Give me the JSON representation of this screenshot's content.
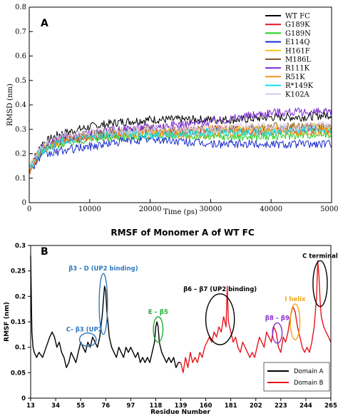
{
  "chart_data": [
    {
      "type": "line",
      "panel_label": "A",
      "title": "",
      "xlabel": "Time (ps)",
      "ylabel": "RMSD (nm)",
      "xlim": [
        0,
        50000
      ],
      "ylim": [
        0,
        0.8
      ],
      "xticks": [
        0,
        10000,
        20000,
        30000,
        40000,
        50000
      ],
      "yticks": [
        0,
        0.1,
        0.2,
        0.3,
        0.4,
        0.5,
        0.6,
        0.7,
        0.8
      ],
      "xtick_labels": [
        "0",
        "10000",
        "20000",
        "30000",
        "40000",
        "50000"
      ],
      "ytick_labels": [
        "0",
        "0.1",
        "0.2",
        "0.3",
        "0.4",
        "0.5",
        "0.6",
        "0.7",
        "0.8"
      ],
      "grid": false,
      "legend_position": "top-right",
      "series": [
        {
          "name": "WT FC",
          "color": "#000000",
          "x": [
            0,
            2000,
            5000,
            10000,
            15000,
            20000,
            25000,
            30000,
            35000,
            40000,
            45000,
            50000
          ],
          "values": [
            0.14,
            0.24,
            0.28,
            0.31,
            0.33,
            0.34,
            0.34,
            0.34,
            0.34,
            0.35,
            0.35,
            0.36
          ]
        },
        {
          "name": "G189K",
          "color": "#e8141b",
          "x": [
            0,
            2000,
            5000,
            10000,
            15000,
            20000,
            25000,
            30000,
            35000,
            40000,
            45000,
            50000
          ],
          "values": [
            0.13,
            0.21,
            0.25,
            0.27,
            0.28,
            0.29,
            0.29,
            0.3,
            0.3,
            0.29,
            0.3,
            0.3
          ]
        },
        {
          "name": "G189N",
          "color": "#1fcf1f",
          "x": [
            0,
            2000,
            5000,
            10000,
            15000,
            20000,
            25000,
            30000,
            35000,
            40000,
            45000,
            50000
          ],
          "values": [
            0.14,
            0.21,
            0.24,
            0.26,
            0.27,
            0.27,
            0.27,
            0.27,
            0.27,
            0.27,
            0.28,
            0.28
          ]
        },
        {
          "name": "E114Q",
          "color": "#1a2ccf",
          "x": [
            0,
            2000,
            5000,
            10000,
            15000,
            20000,
            25000,
            30000,
            35000,
            40000,
            45000,
            50000
          ],
          "values": [
            0.13,
            0.19,
            0.21,
            0.23,
            0.25,
            0.26,
            0.25,
            0.24,
            0.24,
            0.24,
            0.24,
            0.24
          ]
        },
        {
          "name": "H161F",
          "color": "#f0c810",
          "x": [
            0,
            2000,
            5000,
            10000,
            15000,
            20000,
            25000,
            30000,
            35000,
            40000,
            45000,
            50000
          ],
          "values": [
            0.14,
            0.22,
            0.26,
            0.28,
            0.29,
            0.29,
            0.29,
            0.3,
            0.3,
            0.3,
            0.31,
            0.31
          ]
        },
        {
          "name": "M186L",
          "color": "#8a5a2a",
          "x": [
            0,
            2000,
            5000,
            10000,
            15000,
            20000,
            25000,
            30000,
            35000,
            40000,
            45000,
            50000
          ],
          "values": [
            0.14,
            0.22,
            0.26,
            0.28,
            0.29,
            0.3,
            0.3,
            0.3,
            0.3,
            0.31,
            0.31,
            0.31
          ]
        },
        {
          "name": "R111K",
          "color": "#7a2ad0",
          "x": [
            0,
            2000,
            5000,
            10000,
            15000,
            20000,
            25000,
            30000,
            35000,
            40000,
            45000,
            50000
          ],
          "values": [
            0.14,
            0.22,
            0.26,
            0.28,
            0.3,
            0.31,
            0.32,
            0.33,
            0.35,
            0.37,
            0.37,
            0.37
          ]
        },
        {
          "name": "R51K",
          "color": "#f0941a",
          "x": [
            0,
            2000,
            5000,
            10000,
            15000,
            20000,
            25000,
            30000,
            35000,
            40000,
            45000,
            50000
          ],
          "values": [
            0.13,
            0.21,
            0.25,
            0.27,
            0.28,
            0.28,
            0.28,
            0.28,
            0.29,
            0.29,
            0.29,
            0.29
          ]
        },
        {
          "name": "R*149K",
          "color": "#12e0f0",
          "x": [
            0,
            2000,
            5000,
            10000,
            15000,
            20000,
            25000,
            30000,
            35000,
            40000,
            45000,
            50000
          ],
          "values": [
            0.14,
            0.21,
            0.25,
            0.27,
            0.28,
            0.28,
            0.28,
            0.29,
            0.29,
            0.29,
            0.3,
            0.3
          ]
        },
        {
          "name": "K102A",
          "color": "#d8c8e8",
          "x": [
            0,
            2000,
            5000,
            10000,
            15000,
            20000,
            25000,
            30000,
            35000,
            40000,
            45000,
            50000
          ],
          "values": [
            0.15,
            0.23,
            0.27,
            0.29,
            0.29,
            0.3,
            0.3,
            0.3,
            0.31,
            0.31,
            0.31,
            0.32
          ]
        }
      ]
    },
    {
      "type": "line",
      "panel_label": "B",
      "title": "RMSF of Monomer  A of WT FC",
      "xlabel": "Residue Number",
      "ylabel": "RMSF (nm)",
      "xlim": [
        13,
        265
      ],
      "ylim": [
        0,
        0.3
      ],
      "xticks": [
        13,
        34,
        55,
        76,
        97,
        118,
        139,
        160,
        181,
        202,
        223,
        244,
        265
      ],
      "yticks": [
        0,
        0.05,
        0.1,
        0.15,
        0.2,
        0.25,
        0.3
      ],
      "xtick_labels": [
        "13",
        "34",
        "55",
        "76",
        "97",
        "118",
        "139",
        "160",
        "181",
        "202",
        "223",
        "244",
        "265"
      ],
      "ytick_labels": [
        "0",
        "0.05",
        "0.1",
        "0.15",
        "0.2",
        "0.25",
        "0.3"
      ],
      "grid": false,
      "legend_position": "bottom-right",
      "series": [
        {
          "name": "Domain A",
          "color": "#000000",
          "x": [
            13,
            14,
            15,
            16,
            18,
            20,
            23,
            26,
            29,
            31,
            33,
            35,
            37,
            39,
            41,
            43,
            45,
            47,
            49,
            51,
            53,
            55,
            57,
            59,
            61,
            63,
            65,
            67,
            69,
            71,
            73,
            75,
            76,
            77,
            79,
            81,
            83,
            85,
            87,
            89,
            91,
            93,
            95,
            97,
            99,
            101,
            103,
            105,
            107,
            109,
            111,
            113,
            115,
            117,
            118,
            119,
            120,
            121,
            123,
            125,
            127,
            129,
            131,
            133,
            135,
            137,
            139
          ],
          "values": [
            0.28,
            0.13,
            0.1,
            0.09,
            0.08,
            0.09,
            0.08,
            0.1,
            0.12,
            0.13,
            0.12,
            0.1,
            0.11,
            0.09,
            0.08,
            0.06,
            0.07,
            0.09,
            0.08,
            0.07,
            0.09,
            0.11,
            0.1,
            0.09,
            0.11,
            0.1,
            0.12,
            0.11,
            0.1,
            0.12,
            0.16,
            0.22,
            0.21,
            0.17,
            0.12,
            0.1,
            0.09,
            0.08,
            0.1,
            0.09,
            0.08,
            0.1,
            0.09,
            0.1,
            0.09,
            0.08,
            0.09,
            0.07,
            0.08,
            0.07,
            0.08,
            0.07,
            0.09,
            0.11,
            0.14,
            0.15,
            0.14,
            0.11,
            0.09,
            0.08,
            0.07,
            0.08,
            0.07,
            0.08,
            0.06,
            0.07,
            0.07
          ]
        },
        {
          "name": "Domain B",
          "color": "#e8141b",
          "x": [
            139,
            141,
            143,
            145,
            147,
            149,
            151,
            153,
            155,
            157,
            159,
            161,
            163,
            165,
            167,
            169,
            171,
            173,
            175,
            177,
            178,
            179,
            181,
            183,
            185,
            187,
            189,
            191,
            193,
            195,
            197,
            199,
            201,
            203,
            205,
            207,
            209,
            211,
            213,
            215,
            217,
            219,
            221,
            223,
            225,
            227,
            229,
            231,
            233,
            235,
            237,
            239,
            241,
            243,
            245,
            247,
            249,
            251,
            253,
            254,
            255,
            256,
            257,
            259,
            261,
            263,
            265
          ],
          "values": [
            0.07,
            0.05,
            0.08,
            0.06,
            0.09,
            0.07,
            0.08,
            0.07,
            0.09,
            0.08,
            0.1,
            0.11,
            0.12,
            0.11,
            0.13,
            0.12,
            0.14,
            0.13,
            0.16,
            0.14,
            0.22,
            0.15,
            0.13,
            0.11,
            0.12,
            0.1,
            0.09,
            0.11,
            0.1,
            0.09,
            0.08,
            0.09,
            0.08,
            0.1,
            0.12,
            0.11,
            0.1,
            0.13,
            0.12,
            0.11,
            0.14,
            0.13,
            0.1,
            0.09,
            0.12,
            0.11,
            0.13,
            0.16,
            0.18,
            0.17,
            0.14,
            0.12,
            0.1,
            0.09,
            0.1,
            0.09,
            0.11,
            0.14,
            0.2,
            0.27,
            0.24,
            0.19,
            0.16,
            0.14,
            0.13,
            0.12,
            0.11
          ]
        }
      ],
      "annotations": [
        {
          "text": "C- β3 (UP2",
          "color": "#2f79c0",
          "x": 61,
          "y": 0.115,
          "rx": 7,
          "ry": 0.013
        },
        {
          "text": "β3 - D (UP2 binding)",
          "color": "#2f79c0",
          "x": 74,
          "y": 0.185,
          "rx": 3.5,
          "ry": 0.06
        },
        {
          "text": "E – β5",
          "color": "#1fae2c",
          "x": 120,
          "y": 0.135,
          "rx": 4,
          "ry": 0.025
        },
        {
          "text": "β6 – β7 (UP2 binding)",
          "color": "#000000",
          "x": 172,
          "y": 0.155,
          "rx": 12,
          "ry": 0.05
        },
        {
          "text": "β8 – β9",
          "color": "#8a2bd0",
          "x": 220,
          "y": 0.128,
          "rx": 4,
          "ry": 0.02
        },
        {
          "text": "I helix",
          "color": "#f0a818",
          "x": 235,
          "y": 0.15,
          "rx": 4,
          "ry": 0.035
        },
        {
          "text": "C terminal",
          "color": "#000000",
          "x": 256,
          "y": 0.225,
          "rx": 6,
          "ry": 0.045
        }
      ]
    }
  ]
}
